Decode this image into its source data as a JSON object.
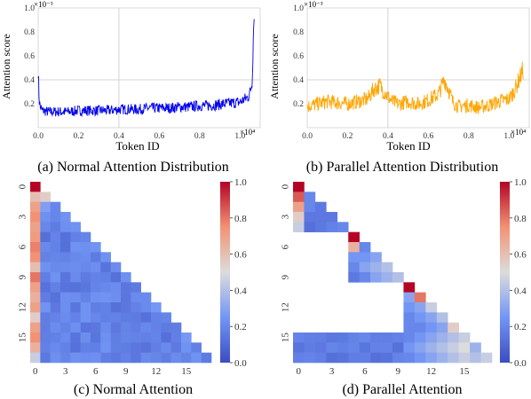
{
  "colors": {
    "normal_series": "#0000ee",
    "parallel_series": "#ffa500",
    "heat_low": "#3b4cc0",
    "heat_mid": "#dddcdc",
    "heat_high": "#b40426",
    "grid": "#c8c8c8"
  },
  "chart_data": [
    {
      "type": "line",
      "caption": "(a) Normal Attention Distribution",
      "xlabel": "Token ID",
      "ylabel": "Attention score",
      "x_multiplier": "×10⁴",
      "y_multiplier": "×10⁻³",
      "xlim": [
        0,
        1.1
      ],
      "ylim": [
        0,
        1.0
      ],
      "xticks": [
        0.0,
        0.2,
        0.4,
        0.6,
        0.8,
        1.0
      ],
      "yticks": [
        0.2,
        0.4,
        0.6,
        0.8,
        1.0
      ],
      "grid": true,
      "series": [
        {
          "color": "#0000ee",
          "x": [
            0.0,
            0.005,
            0.01,
            0.02,
            0.05,
            0.1,
            0.15,
            0.2,
            0.25,
            0.3,
            0.35,
            0.4,
            0.45,
            0.5,
            0.55,
            0.6,
            0.65,
            0.7,
            0.75,
            0.8,
            0.85,
            0.9,
            0.95,
            1.0,
            1.02,
            1.04,
            1.05,
            1.06,
            1.07
          ],
          "y": [
            0.46,
            0.22,
            0.16,
            0.13,
            0.12,
            0.12,
            0.12,
            0.13,
            0.13,
            0.13,
            0.13,
            0.14,
            0.14,
            0.14,
            0.15,
            0.15,
            0.15,
            0.16,
            0.16,
            0.17,
            0.17,
            0.18,
            0.19,
            0.2,
            0.22,
            0.24,
            0.28,
            0.36,
            0.96
          ]
        }
      ]
    },
    {
      "type": "line",
      "caption": "(b) Parallel Attention Distribution",
      "xlabel": "Token ID",
      "ylabel": "Attention score",
      "x_multiplier": "×10⁴",
      "y_multiplier": "×10⁻³",
      "xlim": [
        0,
        1.1
      ],
      "ylim": [
        0,
        1.0
      ],
      "xticks": [
        0.0,
        0.2,
        0.4,
        0.6,
        0.8,
        1.0
      ],
      "yticks": [
        0.2,
        0.4,
        0.6,
        0.8,
        1.0
      ],
      "grid": true,
      "series": [
        {
          "color": "#ffa500",
          "x": [
            0.0,
            0.05,
            0.1,
            0.15,
            0.2,
            0.25,
            0.3,
            0.33,
            0.36,
            0.38,
            0.42,
            0.45,
            0.5,
            0.55,
            0.6,
            0.65,
            0.68,
            0.7,
            0.72,
            0.75,
            0.8,
            0.85,
            0.9,
            0.95,
            1.0,
            1.03,
            1.05,
            1.07
          ],
          "y": [
            0.16,
            0.18,
            0.2,
            0.19,
            0.18,
            0.2,
            0.22,
            0.3,
            0.33,
            0.28,
            0.2,
            0.18,
            0.2,
            0.18,
            0.21,
            0.26,
            0.38,
            0.3,
            0.2,
            0.16,
            0.17,
            0.15,
            0.17,
            0.2,
            0.22,
            0.3,
            0.38,
            0.46
          ]
        }
      ]
    },
    {
      "type": "heatmap",
      "caption": "(c) Normal Attention",
      "size": 18,
      "xtick_labels": [
        "0",
        "3",
        "6",
        "9",
        "12",
        "15"
      ],
      "ytick_labels": [
        "0",
        "3",
        "6",
        "9",
        "12",
        "15"
      ],
      "colorbar_ticks": [
        "0.0",
        "0.2",
        "0.4",
        "0.6",
        "0.8",
        "1.0"
      ],
      "vmin": 0,
      "vmax": 1,
      "col0": [
        1.0,
        0.6,
        0.7,
        0.75,
        0.7,
        0.72,
        0.78,
        0.75,
        0.6,
        0.8,
        0.7,
        0.65,
        0.7,
        0.55,
        0.7,
        0.75,
        0.65,
        0.45
      ],
      "rest_level": 0.12,
      "diag_level": 0.15,
      "second_col_top": [
        0.0,
        0.7,
        0.25
      ]
    },
    {
      "type": "heatmap",
      "caption": "(d) Parallel Attention",
      "size": 18,
      "xtick_labels": [
        "0",
        "3",
        "6",
        "9",
        "12",
        "15"
      ],
      "ytick_labels": [
        "0",
        "3",
        "6",
        "9",
        "12",
        "15"
      ],
      "colorbar_ticks": [
        "0.0",
        "0.2",
        "0.4",
        "0.6",
        "0.8",
        "1.0"
      ],
      "vmin": 0,
      "vmax": 1,
      "blocks": [
        {
          "start": 0,
          "end": 4,
          "values": [
            [
              1.0
            ],
            [
              0.85,
              0.2
            ],
            [
              0.7,
              0.2,
              0.15
            ],
            [
              0.55,
              0.15,
              0.15,
              0.15
            ],
            [
              0.45,
              0.12,
              0.15,
              0.18,
              0.2
            ]
          ]
        },
        {
          "start": 5,
          "end": 9,
          "values": [
            [
              1.0
            ],
            [
              0.65,
              0.2
            ],
            [
              0.25,
              0.25,
              0.3
            ],
            [
              0.2,
              0.3,
              0.35,
              0.4
            ],
            [
              0.15,
              0.2,
              0.3,
              0.35,
              0.4
            ]
          ]
        },
        {
          "start": 10,
          "end": 17,
          "values": [
            [
              1.0
            ],
            [
              0.3,
              0.8
            ],
            [
              0.25,
              0.3,
              0.45
            ],
            [
              0.2,
              0.25,
              0.3,
              0.4
            ],
            [
              0.2,
              0.2,
              0.25,
              0.3,
              0.55
            ],
            [
              0.2,
              0.25,
              0.3,
              0.35,
              0.4,
              0.45
            ],
            [
              0.25,
              0.3,
              0.35,
              0.4,
              0.45,
              0.5,
              0.35
            ],
            [
              0.2,
              0.25,
              0.3,
              0.35,
              0.4,
              0.45,
              0.4,
              0.45
            ]
          ]
        }
      ],
      "bottom_rows": [
        15,
        16,
        17
      ],
      "bottom_level": 0.12
    }
  ]
}
